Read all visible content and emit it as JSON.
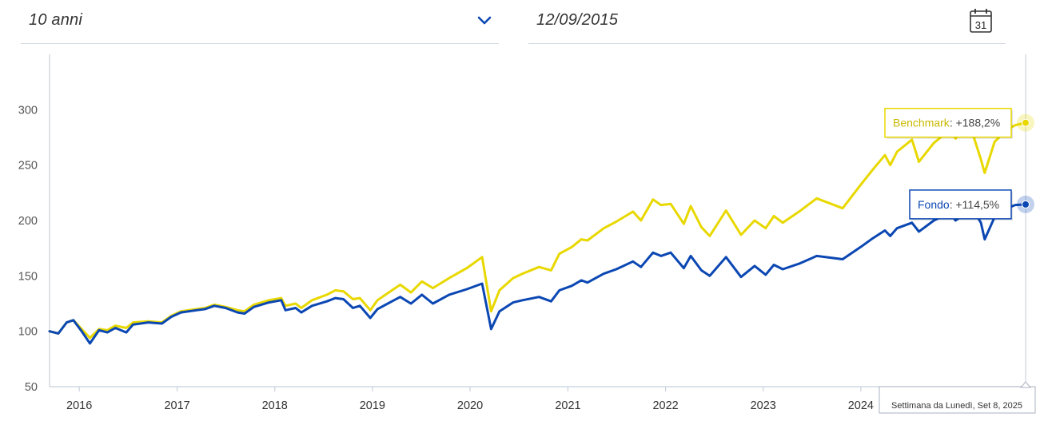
{
  "controls": {
    "period_value": "10 anni",
    "start_date": "12/09/2015",
    "calendar_day": "31"
  },
  "tooltip": {
    "benchmark_name": "Benchmark",
    "benchmark_value": "+188,2%",
    "fund_name": "Fondo",
    "fund_value": "+114,5%",
    "date_label": "Settimana da Lunedì, Set 8, 2025"
  },
  "colors": {
    "fund": "#0b47b3",
    "benchmark": "#e8d800",
    "axis": "#c8d0dc"
  },
  "chart_data": {
    "type": "line",
    "ylim": [
      50,
      350
    ],
    "y_ticks": [
      50,
      100,
      150,
      200,
      250,
      300
    ],
    "x_ticks": [
      "2016",
      "2017",
      "2018",
      "2019",
      "2020",
      "2021",
      "2022",
      "2023",
      "2024"
    ],
    "xlim": [
      "2015-09-12",
      "2025-09-08"
    ],
    "series": [
      {
        "name": "Fondo",
        "color": "#0b47b3",
        "points": [
          [
            "2015-09-12",
            100
          ],
          [
            "2015-10-15",
            98
          ],
          [
            "2015-11-15",
            108
          ],
          [
            "2015-12-10",
            110
          ],
          [
            "2016-01-10",
            100
          ],
          [
            "2016-02-10",
            89
          ],
          [
            "2016-03-15",
            101
          ],
          [
            "2016-04-15",
            99
          ],
          [
            "2016-05-15",
            103
          ],
          [
            "2016-06-25",
            99
          ],
          [
            "2016-07-20",
            106
          ],
          [
            "2016-09-15",
            108
          ],
          [
            "2016-11-05",
            107
          ],
          [
            "2016-12-10",
            113
          ],
          [
            "2017-01-15",
            117
          ],
          [
            "2017-03-15",
            119
          ],
          [
            "2017-04-15",
            120
          ],
          [
            "2017-05-20",
            123
          ],
          [
            "2017-07-01",
            121
          ],
          [
            "2017-08-15",
            117
          ],
          [
            "2017-09-10",
            116
          ],
          [
            "2017-10-15",
            122
          ],
          [
            "2017-12-10",
            126
          ],
          [
            "2018-01-25",
            128
          ],
          [
            "2018-02-10",
            119
          ],
          [
            "2018-03-20",
            121
          ],
          [
            "2018-04-10",
            117
          ],
          [
            "2018-05-20",
            123
          ],
          [
            "2018-07-15",
            127
          ],
          [
            "2018-08-15",
            130
          ],
          [
            "2018-09-15",
            129
          ],
          [
            "2018-10-20",
            121
          ],
          [
            "2018-11-15",
            123
          ],
          [
            "2018-12-24",
            112
          ],
          [
            "2019-01-20",
            120
          ],
          [
            "2019-03-15",
            127
          ],
          [
            "2019-04-15",
            131
          ],
          [
            "2019-05-25",
            125
          ],
          [
            "2019-07-05",
            133
          ],
          [
            "2019-08-15",
            125
          ],
          [
            "2019-10-15",
            133
          ],
          [
            "2019-12-20",
            138
          ],
          [
            "2020-02-15",
            143
          ],
          [
            "2020-03-20",
            102
          ],
          [
            "2020-04-20",
            118
          ],
          [
            "2020-06-10",
            126
          ],
          [
            "2020-07-15",
            128
          ],
          [
            "2020-09-15",
            131
          ],
          [
            "2020-10-30",
            127
          ],
          [
            "2020-11-30",
            137
          ],
          [
            "2021-01-15",
            141
          ],
          [
            "2021-02-20",
            146
          ],
          [
            "2021-03-15",
            144
          ],
          [
            "2021-05-15",
            152
          ],
          [
            "2021-07-01",
            156
          ],
          [
            "2021-09-01",
            163
          ],
          [
            "2021-10-01",
            158
          ],
          [
            "2021-11-15",
            171
          ],
          [
            "2021-12-15",
            168
          ],
          [
            "2022-01-20",
            171
          ],
          [
            "2022-03-10",
            157
          ],
          [
            "2022-04-05",
            168
          ],
          [
            "2022-05-15",
            155
          ],
          [
            "2022-06-15",
            150
          ],
          [
            "2022-08-15",
            167
          ],
          [
            "2022-10-10",
            149
          ],
          [
            "2022-11-30",
            159
          ],
          [
            "2023-01-10",
            151
          ],
          [
            "2023-02-10",
            160
          ],
          [
            "2023-03-15",
            156
          ],
          [
            "2023-05-15",
            161
          ],
          [
            "2023-07-20",
            168
          ],
          [
            "2023-10-25",
            165
          ],
          [
            "2023-12-31",
            176
          ],
          [
            "2024-02-15",
            184
          ],
          [
            "2024-03-31",
            191
          ],
          [
            "2024-04-20",
            186
          ],
          [
            "2024-05-15",
            193
          ],
          [
            "2024-07-10",
            198
          ],
          [
            "2024-08-05",
            190
          ],
          [
            "2024-09-30",
            200
          ],
          [
            "2024-11-30",
            207
          ],
          [
            "2024-12-20",
            200
          ],
          [
            "2025-01-31",
            207
          ],
          [
            "2025-02-20",
            211
          ],
          [
            "2025-03-25",
            198
          ],
          [
            "2025-04-08",
            183
          ],
          [
            "2025-05-15",
            203
          ],
          [
            "2025-06-30",
            211
          ],
          [
            "2025-07-31",
            214
          ],
          [
            "2025-09-08",
            214.5
          ]
        ]
      },
      {
        "name": "Benchmark",
        "color": "#e8d800",
        "points": [
          [
            "2015-09-12",
            100
          ],
          [
            "2015-10-15",
            98
          ],
          [
            "2015-11-15",
            108
          ],
          [
            "2015-12-10",
            110
          ],
          [
            "2016-01-10",
            102
          ],
          [
            "2016-02-10",
            94
          ],
          [
            "2016-03-15",
            102
          ],
          [
            "2016-04-15",
            101
          ],
          [
            "2016-05-15",
            105
          ],
          [
            "2016-06-25",
            103
          ],
          [
            "2016-07-20",
            108
          ],
          [
            "2016-09-15",
            109
          ],
          [
            "2016-11-05",
            108
          ],
          [
            "2016-12-10",
            114
          ],
          [
            "2017-01-15",
            118
          ],
          [
            "2017-03-15",
            120
          ],
          [
            "2017-04-15",
            121
          ],
          [
            "2017-05-20",
            124
          ],
          [
            "2017-07-01",
            122
          ],
          [
            "2017-08-15",
            119
          ],
          [
            "2017-09-10",
            118
          ],
          [
            "2017-10-15",
            124
          ],
          [
            "2017-12-10",
            128
          ],
          [
            "2018-01-25",
            130
          ],
          [
            "2018-02-10",
            123
          ],
          [
            "2018-03-20",
            125
          ],
          [
            "2018-04-10",
            121
          ],
          [
            "2018-05-20",
            128
          ],
          [
            "2018-07-15",
            133
          ],
          [
            "2018-08-15",
            137
          ],
          [
            "2018-09-15",
            136
          ],
          [
            "2018-10-20",
            129
          ],
          [
            "2018-11-15",
            130
          ],
          [
            "2018-12-24",
            119
          ],
          [
            "2019-01-20",
            128
          ],
          [
            "2019-03-15",
            137
          ],
          [
            "2019-04-15",
            142
          ],
          [
            "2019-05-25",
            135
          ],
          [
            "2019-07-05",
            145
          ],
          [
            "2019-08-15",
            139
          ],
          [
            "2019-10-15",
            148
          ],
          [
            "2019-12-20",
            157
          ],
          [
            "2020-02-15",
            167
          ],
          [
            "2020-03-20",
            118
          ],
          [
            "2020-04-20",
            137
          ],
          [
            "2020-06-10",
            148
          ],
          [
            "2020-07-15",
            152
          ],
          [
            "2020-09-15",
            158
          ],
          [
            "2020-10-30",
            155
          ],
          [
            "2020-11-30",
            170
          ],
          [
            "2021-01-15",
            176
          ],
          [
            "2021-02-20",
            183
          ],
          [
            "2021-03-15",
            182
          ],
          [
            "2021-05-15",
            193
          ],
          [
            "2021-07-01",
            199
          ],
          [
            "2021-09-01",
            208
          ],
          [
            "2021-10-01",
            200
          ],
          [
            "2021-11-15",
            219
          ],
          [
            "2021-12-15",
            214
          ],
          [
            "2022-01-20",
            215
          ],
          [
            "2022-03-10",
            197
          ],
          [
            "2022-04-05",
            213
          ],
          [
            "2022-05-15",
            194
          ],
          [
            "2022-06-15",
            186
          ],
          [
            "2022-08-15",
            209
          ],
          [
            "2022-10-10",
            187
          ],
          [
            "2022-11-30",
            200
          ],
          [
            "2023-01-10",
            193
          ],
          [
            "2023-02-10",
            204
          ],
          [
            "2023-03-15",
            198
          ],
          [
            "2023-05-15",
            208
          ],
          [
            "2023-07-20",
            220
          ],
          [
            "2023-10-25",
            211
          ],
          [
            "2023-12-31",
            232
          ],
          [
            "2024-02-15",
            246
          ],
          [
            "2024-03-31",
            259
          ],
          [
            "2024-04-20",
            250
          ],
          [
            "2024-05-15",
            262
          ],
          [
            "2024-07-10",
            273
          ],
          [
            "2024-08-05",
            253
          ],
          [
            "2024-09-30",
            270
          ],
          [
            "2024-11-30",
            282
          ],
          [
            "2024-12-20",
            274
          ],
          [
            "2025-01-31",
            284
          ],
          [
            "2025-02-20",
            280
          ],
          [
            "2025-03-25",
            255
          ],
          [
            "2025-04-08",
            243
          ],
          [
            "2025-05-15",
            271
          ],
          [
            "2025-06-30",
            282
          ],
          [
            "2025-07-31",
            286
          ],
          [
            "2025-09-08",
            288.2
          ]
        ]
      }
    ]
  }
}
